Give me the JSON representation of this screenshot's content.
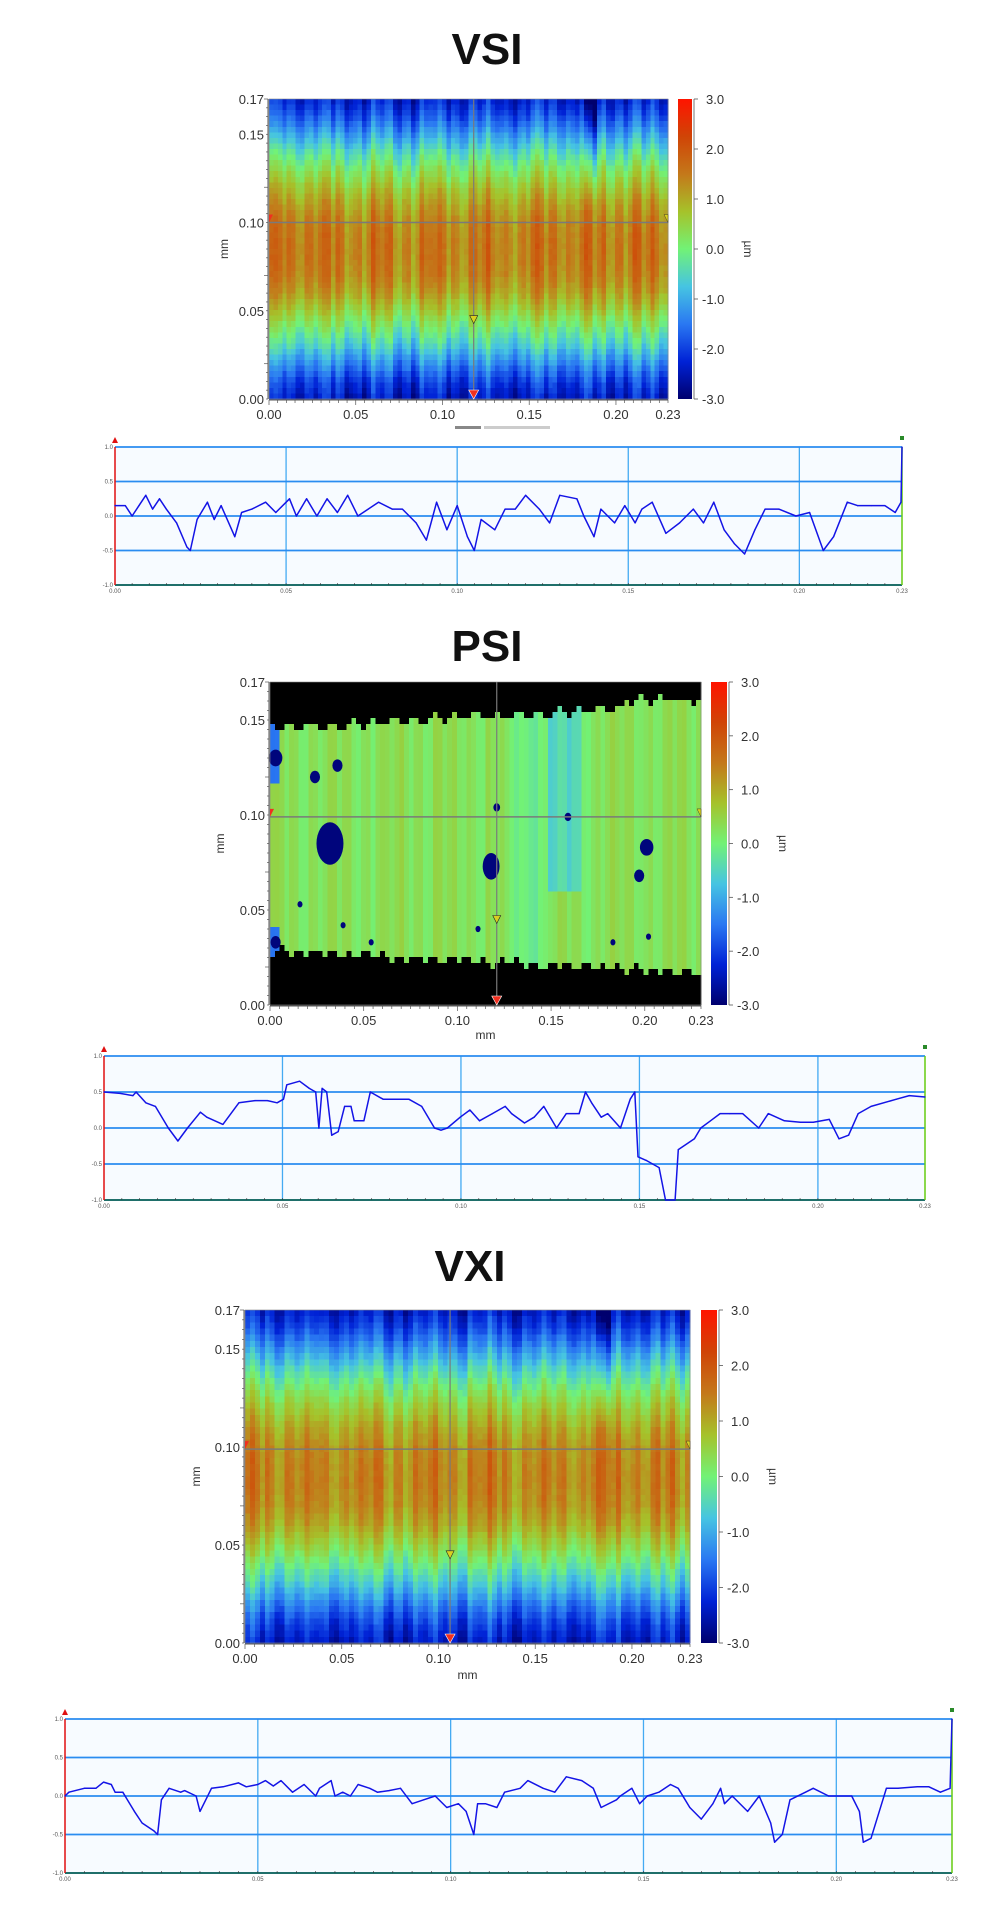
{
  "colormap": [
    "#00006e",
    "#0022d6",
    "#2a78f2",
    "#46c4e2",
    "#72f276",
    "#a6c22a",
    "#c4781a",
    "#d04406",
    "#ff1400"
  ],
  "profile_colors": {
    "line": "#1414e6",
    "grid": "#2a8cf0",
    "vgrid": "#44aaf2",
    "left_axis": "#e01010",
    "right_axis": "#66cc11",
    "background": "#f7fbff"
  },
  "chart_data": [
    {
      "title": "VSI",
      "heatmap": {
        "type": "heatmap",
        "xlabel": "",
        "ylabel": "mm",
        "zlabel": "µm",
        "xlim": [
          0,
          0.23
        ],
        "ylim": [
          0,
          0.17
        ],
        "zlim": [
          -3,
          3
        ],
        "xticks": [
          "0.00",
          "0.05",
          "0.10",
          "0.15",
          "0.20",
          "0.23"
        ],
        "yticks": [
          "0.00",
          "0.05",
          "0.10",
          "0.15",
          "0.17"
        ],
        "colorbar_ticks": [
          "3.0",
          "2.0",
          "1.0",
          "0.0",
          "-1.0",
          "-2.0",
          "-3.0"
        ],
        "mean_height_by_y": {
          "y": [
            0,
            0.01,
            0.02,
            0.03,
            0.04,
            0.05,
            0.06,
            0.07,
            0.08,
            0.09,
            0.1,
            0.11,
            0.12,
            0.13,
            0.14,
            0.15,
            0.16,
            0.17
          ],
          "z": [
            -2.4,
            -2.0,
            -1.3,
            -0.6,
            0.0,
            0.6,
            1.1,
            1.4,
            1.5,
            1.5,
            1.4,
            1.1,
            0.7,
            0.2,
            -0.4,
            -1.1,
            -1.8,
            -2.3
          ]
        },
        "cursor": {
          "x": 0.118,
          "y": 0.1
        }
      },
      "profile": {
        "type": "line",
        "xlim": [
          0,
          0.23
        ],
        "ylim": [
          -1,
          1
        ],
        "xticks": [
          "0.00",
          "0.05",
          "0.10",
          "0.15",
          "0.20",
          "0.23"
        ],
        "yticks": [
          "1.0",
          "0.5",
          "0.0",
          "-0.5",
          "-1.0"
        ],
        "x": [
          0,
          0.003,
          0.005,
          0.007,
          0.009,
          0.011,
          0.013,
          0.015,
          0.018,
          0.021,
          0.022,
          0.024,
          0.027,
          0.029,
          0.031,
          0.035,
          0.037,
          0.04,
          0.044,
          0.047,
          0.051,
          0.053,
          0.056,
          0.059,
          0.062,
          0.065,
          0.068,
          0.071,
          0.074,
          0.077,
          0.081,
          0.084,
          0.088,
          0.091,
          0.094,
          0.097,
          0.1,
          0.103,
          0.105,
          0.107,
          0.111,
          0.114,
          0.117,
          0.12,
          0.124,
          0.127,
          0.13,
          0.135,
          0.137,
          0.14,
          0.142,
          0.146,
          0.149,
          0.152,
          0.154,
          0.157,
          0.161,
          0.165,
          0.169,
          0.172,
          0.175,
          0.178,
          0.181,
          0.184,
          0.187,
          0.19,
          0.194,
          0.199,
          0.203,
          0.207,
          0.21,
          0.214,
          0.217,
          0.221,
          0.225,
          0.228,
          0.2297,
          0.23
        ],
        "y": [
          0.15,
          0.15,
          0.0,
          0.15,
          0.3,
          0.1,
          0.25,
          0.1,
          -0.1,
          -0.45,
          -0.5,
          -0.05,
          0.2,
          -0.05,
          0.15,
          -0.3,
          0.05,
          0.1,
          0.2,
          0.05,
          0.25,
          0.0,
          0.25,
          0.0,
          0.25,
          0.05,
          0.3,
          0.0,
          0.1,
          0.2,
          0.1,
          0.1,
          -0.1,
          -0.35,
          0.2,
          -0.2,
          0.15,
          -0.3,
          -0.5,
          -0.05,
          -0.2,
          0.1,
          0.1,
          0.3,
          0.1,
          -0.1,
          0.3,
          0.25,
          0.0,
          -0.3,
          0.1,
          -0.1,
          0.15,
          -0.1,
          0.1,
          0.2,
          -0.25,
          -0.1,
          0.1,
          -0.1,
          0.2,
          -0.2,
          -0.4,
          -0.55,
          -0.2,
          0.1,
          0.1,
          0.0,
          0.05,
          -0.5,
          -0.3,
          0.2,
          0.15,
          0.15,
          0.15,
          0.05,
          0.2,
          1.0
        ]
      }
    },
    {
      "title": "PSI",
      "heatmap": {
        "type": "heatmap",
        "xlabel": "mm",
        "ylabel": "mm",
        "zlabel": "µm",
        "xlim": [
          0,
          0.23
        ],
        "ylim": [
          0,
          0.17
        ],
        "zlim": [
          -3,
          3
        ],
        "xticks": [
          "0.00",
          "0.05",
          "0.10",
          "0.15",
          "0.20",
          "0.23"
        ],
        "yticks": [
          "0.00",
          "0.05",
          "0.10",
          "0.15",
          "0.17"
        ],
        "colorbar_ticks": [
          "3.0",
          "2.0",
          "1.0",
          "0.0",
          "-1.0",
          "-2.0",
          "-3.0"
        ],
        "mean_height": 0.3,
        "no_data_color": "#000000",
        "low_spots": [
          [
            0.032,
            0.085,
            0.008
          ],
          [
            0.118,
            0.073,
            0.005
          ],
          [
            0.003,
            0.13,
            0.004
          ],
          [
            0.024,
            0.12,
            0.003
          ],
          [
            0.036,
            0.126,
            0.003
          ],
          [
            0.201,
            0.083,
            0.004
          ],
          [
            0.197,
            0.068,
            0.003
          ],
          [
            0.159,
            0.099,
            0.002
          ],
          [
            0.121,
            0.104,
            0.002
          ],
          [
            0.003,
            0.033,
            0.003
          ],
          [
            0.016,
            0.053,
            0.0015
          ],
          [
            0.054,
            0.033,
            0.0015
          ],
          [
            0.111,
            0.04,
            0.0015
          ],
          [
            0.183,
            0.033,
            0.0015
          ],
          [
            0.202,
            0.036,
            0.0015
          ],
          [
            0.039,
            0.042,
            0.0015
          ]
        ],
        "cursor": {
          "x": 0.121,
          "y": 0.099
        }
      },
      "profile": {
        "type": "line",
        "xlim": [
          0,
          0.23
        ],
        "ylim": [
          -1,
          1
        ],
        "xticks": [
          "0.00",
          "0.05",
          "0.10",
          "0.15",
          "0.20",
          "0.23"
        ],
        "yticks": [
          "1.0",
          "0.5",
          "0.0",
          "-0.5",
          "-1.0"
        ],
        "x": [
          0,
          0.0045,
          0.0081,
          0.009,
          0.0117,
          0.0144,
          0.018,
          0.0207,
          0.0234,
          0.027,
          0.0288,
          0.0333,
          0.0378,
          0.0423,
          0.0458,
          0.0485,
          0.0503,
          0.0512,
          0.0548,
          0.0575,
          0.0593,
          0.0602,
          0.0611,
          0.0624,
          0.0638,
          0.0656,
          0.0674,
          0.0692,
          0.0701,
          0.0728,
          0.0746,
          0.0782,
          0.0854,
          0.089,
          0.0926,
          0.0944,
          0.0962,
          0.0998,
          0.1025,
          0.1052,
          0.1088,
          0.1124,
          0.1142,
          0.1178,
          0.1205,
          0.1232,
          0.1268,
          0.1295,
          0.1331,
          0.1349,
          0.1366,
          0.1393,
          0.1411,
          0.1447,
          0.1474,
          0.1487,
          0.1496,
          0.1519,
          0.1555,
          0.1573,
          0.16,
          0.1609,
          0.1654,
          0.1672,
          0.1699,
          0.1726,
          0.1753,
          0.1789,
          0.1834,
          0.1861,
          0.1906,
          0.1951,
          0.1987,
          0.2032,
          0.2059,
          0.2086,
          0.2113,
          0.2149,
          0.222,
          0.2256,
          0.23
        ],
        "y": [
          0.5,
          0.48,
          0.45,
          0.5,
          0.35,
          0.3,
          0.0,
          -0.18,
          0.0,
          0.22,
          0.15,
          0.05,
          0.35,
          0.38,
          0.38,
          0.35,
          0.4,
          0.6,
          0.65,
          0.55,
          0.5,
          0.0,
          0.55,
          0.5,
          -0.1,
          -0.05,
          0.3,
          0.3,
          0.1,
          0.1,
          0.5,
          0.4,
          0.4,
          0.3,
          0.0,
          -0.03,
          0.0,
          0.15,
          0.25,
          0.1,
          0.2,
          0.3,
          0.2,
          0.07,
          0.15,
          0.3,
          0.0,
          0.2,
          0.2,
          0.5,
          0.35,
          0.15,
          0.2,
          0.0,
          0.4,
          0.5,
          -0.4,
          -0.45,
          -0.55,
          -1.0,
          -1.0,
          -0.3,
          -0.15,
          0.0,
          0.1,
          0.2,
          0.2,
          0.2,
          0.0,
          0.2,
          0.1,
          0.08,
          0.08,
          0.12,
          -0.15,
          -0.1,
          0.2,
          0.3,
          0.4,
          0.45,
          0.43
        ]
      }
    },
    {
      "title": "VXI",
      "heatmap": {
        "type": "heatmap",
        "xlabel": "mm",
        "ylabel": "mm",
        "zlabel": "µm",
        "xlim": [
          0,
          0.23
        ],
        "ylim": [
          0,
          0.17
        ],
        "zlim": [
          -3,
          3
        ],
        "xticks": [
          "0.00",
          "0.05",
          "0.10",
          "0.15",
          "0.20",
          "0.23"
        ],
        "yticks": [
          "0.00",
          "0.05",
          "0.10",
          "0.15",
          "0.17"
        ],
        "colorbar_ticks": [
          "3.0",
          "2.0",
          "1.0",
          "0.0",
          "-1.0",
          "-2.0",
          "-3.0"
        ],
        "mean_height_by_y": {
          "y": [
            0,
            0.01,
            0.02,
            0.03,
            0.04,
            0.05,
            0.06,
            0.07,
            0.08,
            0.09,
            0.1,
            0.11,
            0.12,
            0.13,
            0.14,
            0.15,
            0.16,
            0.17
          ],
          "z": [
            -2.4,
            -2.0,
            -1.4,
            -0.7,
            -0.1,
            0.5,
            1.0,
            1.3,
            1.4,
            1.4,
            1.3,
            1.0,
            0.6,
            0.1,
            -0.5,
            -1.2,
            -1.9,
            -2.4
          ]
        },
        "cursor": {
          "x": 0.106,
          "y": 0.099
        }
      },
      "profile": {
        "type": "line",
        "xlim": [
          0,
          0.23
        ],
        "ylim": [
          -1,
          1
        ],
        "xticks": [
          "0.00",
          "0.05",
          "0.10",
          "0.15",
          "0.20",
          "0.23"
        ],
        "yticks": [
          "1.0",
          "0.5",
          "0.0",
          "-0.5",
          "-1.0"
        ],
        "x": [
          0,
          0.001,
          0.005,
          0.008,
          0.01,
          0.012,
          0.013,
          0.015,
          0.018,
          0.02,
          0.023,
          0.024,
          0.025,
          0.027,
          0.03,
          0.031,
          0.034,
          0.035,
          0.038,
          0.041,
          0.045,
          0.047,
          0.05,
          0.052,
          0.054,
          0.056,
          0.059,
          0.062,
          0.065,
          0.066,
          0.069,
          0.07,
          0.072,
          0.074,
          0.076,
          0.079,
          0.081,
          0.084,
          0.087,
          0.09,
          0.093,
          0.096,
          0.099,
          0.102,
          0.104,
          0.106,
          0.107,
          0.109,
          0.112,
          0.114,
          0.118,
          0.12,
          0.124,
          0.127,
          0.13,
          0.134,
          0.137,
          0.139,
          0.143,
          0.144,
          0.147,
          0.149,
          0.151,
          0.154,
          0.157,
          0.159,
          0.162,
          0.165,
          0.168,
          0.17,
          0.171,
          0.173,
          0.177,
          0.18,
          0.183,
          0.184,
          0.186,
          0.188,
          0.192,
          0.194,
          0.198,
          0.204,
          0.206,
          0.207,
          0.209,
          0.213,
          0.216,
          0.221,
          0.224,
          0.227,
          0.2295,
          0.23
        ],
        "y": [
          0.0,
          0.05,
          0.1,
          0.1,
          0.18,
          0.15,
          0.05,
          0.05,
          -0.2,
          -0.35,
          -0.45,
          -0.5,
          -0.05,
          0.1,
          0.05,
          0.07,
          0.0,
          -0.2,
          0.1,
          0.12,
          0.17,
          0.12,
          0.15,
          0.2,
          0.13,
          0.2,
          0.05,
          0.15,
          0.0,
          0.1,
          0.2,
          0.0,
          0.05,
          0.0,
          0.15,
          0.1,
          0.05,
          0.07,
          0.1,
          -0.1,
          -0.05,
          0.0,
          -0.15,
          -0.1,
          -0.2,
          -0.5,
          -0.1,
          -0.1,
          -0.15,
          0.05,
          0.1,
          0.2,
          0.1,
          0.05,
          0.25,
          0.2,
          0.1,
          -0.15,
          -0.05,
          0.0,
          0.1,
          -0.1,
          0.0,
          0.05,
          0.15,
          0.1,
          -0.15,
          -0.3,
          -0.1,
          0.1,
          -0.1,
          0.0,
          -0.2,
          0.0,
          -0.35,
          -0.6,
          -0.5,
          -0.05,
          0.05,
          0.1,
          0.0,
          0.0,
          -0.2,
          -0.6,
          -0.55,
          0.1,
          0.1,
          0.12,
          0.12,
          0.05,
          0.1,
          1.0
        ]
      }
    }
  ]
}
